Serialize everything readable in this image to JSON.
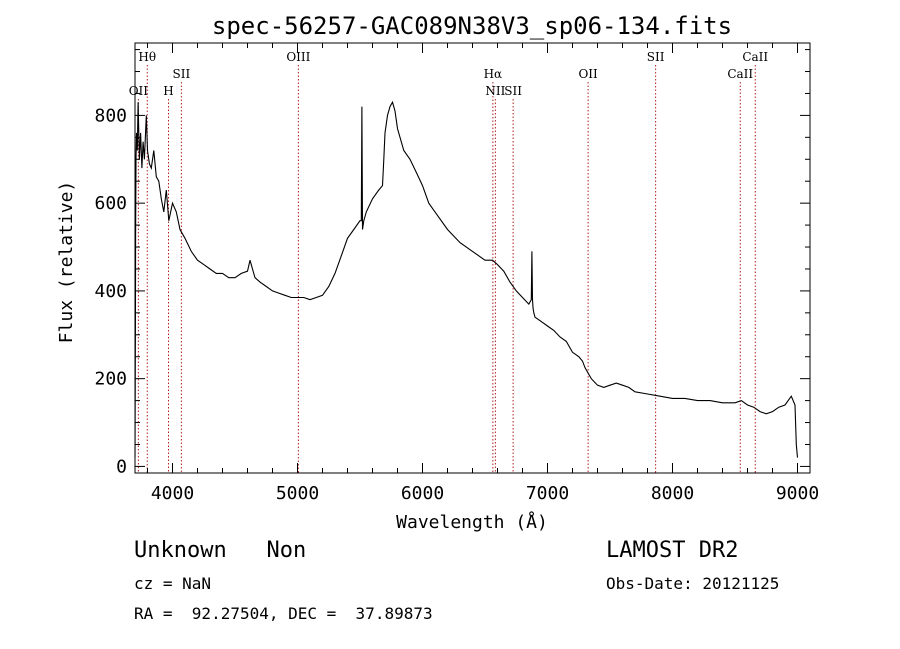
{
  "chart_data": {
    "type": "line",
    "title": "spec-56257-GAC089N38V3_sp06-134.fits",
    "xlabel": "Wavelength (Å)",
    "ylabel": "Flux (relative)",
    "xlim": [
      3700,
      9100
    ],
    "ylim": [
      -15,
      965
    ],
    "xticks": [
      4000,
      5000,
      6000,
      7000,
      8000,
      9000
    ],
    "yticks": [
      0,
      200,
      400,
      600,
      800
    ],
    "grid": false,
    "series": [
      {
        "x": [
          3700,
          3703,
          3705,
          3708,
          3712,
          3718,
          3725,
          3735,
          3745,
          3755,
          3765,
          3775,
          3790,
          3800,
          3815,
          3830,
          3850,
          3870,
          3890,
          3910,
          3930,
          3950,
          3970,
          4000,
          4030,
          4060,
          4100,
          4150,
          4200,
          4250,
          4300,
          4350,
          4400,
          4450,
          4500,
          4550,
          4600,
          4620,
          4640,
          4660,
          4700,
          4750,
          4800,
          4850,
          4900,
          4950,
          5000,
          5050,
          5100,
          5150,
          5200,
          5250,
          5300,
          5350,
          5400,
          5450,
          5500,
          5510,
          5515,
          5520,
          5530,
          5550,
          5600,
          5650,
          5680,
          5690,
          5700,
          5720,
          5740,
          5760,
          5780,
          5800,
          5850,
          5900,
          5950,
          6000,
          6050,
          6100,
          6200,
          6300,
          6400,
          6500,
          6560,
          6600,
          6650,
          6700,
          6750,
          6800,
          6850,
          6870,
          6875,
          6880,
          6885,
          6890,
          6900,
          6950,
          7000,
          7050,
          7100,
          7150,
          7200,
          7250,
          7280,
          7300,
          7350,
          7400,
          7450,
          7500,
          7550,
          7600,
          7650,
          7700,
          7800,
          7900,
          8000,
          8100,
          8200,
          8300,
          8400,
          8500,
          8550,
          8600,
          8650,
          8700,
          8750,
          8800,
          8850,
          8900,
          8950,
          8980,
          8990,
          9000
        ],
        "y": [
          20,
          300,
          520,
          700,
          760,
          720,
          830,
          700,
          760,
          680,
          740,
          700,
          800,
          720,
          690,
          680,
          720,
          660,
          650,
          610,
          580,
          630,
          560,
          600,
          580,
          540,
          520,
          490,
          470,
          460,
          450,
          440,
          440,
          430,
          430,
          440,
          445,
          470,
          450,
          430,
          420,
          410,
          400,
          395,
          390,
          385,
          385,
          385,
          380,
          385,
          390,
          410,
          440,
          480,
          520,
          540,
          560,
          560,
          820,
          540,
          560,
          580,
          610,
          630,
          640,
          700,
          760,
          800,
          820,
          830,
          810,
          770,
          720,
          700,
          670,
          640,
          600,
          580,
          540,
          510,
          490,
          470,
          470,
          460,
          445,
          420,
          400,
          385,
          370,
          380,
          490,
          380,
          360,
          350,
          340,
          330,
          320,
          310,
          295,
          285,
          260,
          250,
          240,
          225,
          200,
          185,
          180,
          185,
          190,
          185,
          180,
          170,
          165,
          160,
          155,
          155,
          150,
          150,
          145,
          145,
          150,
          140,
          135,
          125,
          120,
          125,
          135,
          140,
          160,
          140,
          50,
          20
        ]
      }
    ],
    "line_markers": [
      {
        "label": "Hθ",
        "wavelength": 3798,
        "row": 1
      },
      {
        "label": "OII",
        "wavelength": 3727,
        "row": 3
      },
      {
        "label": "H",
        "wavelength": 3968,
        "row": 3
      },
      {
        "label": "SII",
        "wavelength": 4071,
        "row": 2
      },
      {
        "label": "OIII",
        "wavelength": 5007,
        "row": 1
      },
      {
        "label": "Hα",
        "wavelength": 6563,
        "row": 2
      },
      {
        "label": "NII",
        "wavelength": 6583,
        "row": 3
      },
      {
        "label": "SII",
        "wavelength": 6725,
        "row": 3
      },
      {
        "label": "OII",
        "wavelength": 7325,
        "row": 2
      },
      {
        "label": "SII",
        "wavelength": 7865,
        "row": 1
      },
      {
        "label": "CaII",
        "wavelength": 8542,
        "row": 2
      },
      {
        "label": "CaII",
        "wavelength": 8662,
        "row": 1
      }
    ]
  },
  "info": {
    "classification": "Unknown   Non",
    "survey": "LAMOST DR2",
    "cz": "cz = NaN",
    "obs_date": "Obs-Date: 20121125",
    "coords": "RA =  92.27504, DEC =  37.89873"
  },
  "colors": {
    "spectrum": "#000000",
    "marker_line": "#b22222",
    "axes": "#000000"
  }
}
